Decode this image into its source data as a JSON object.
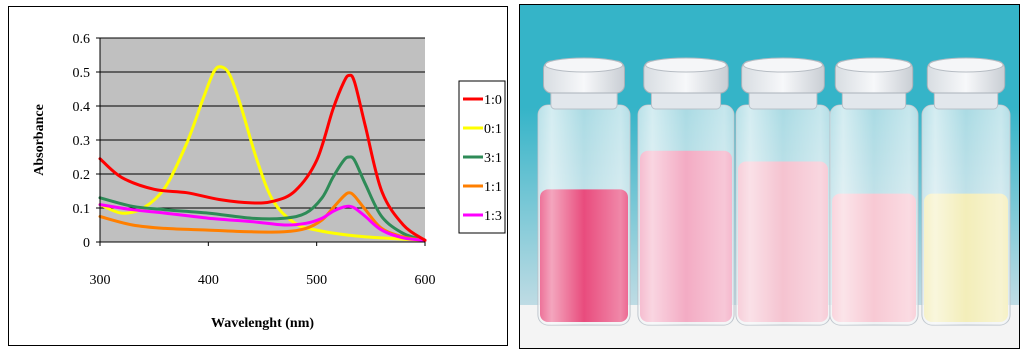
{
  "chart_data": {
    "type": "line",
    "xlabel": "Wavelenght (nm)",
    "ylabel": "Absorbance",
    "xlim": [
      300,
      600
    ],
    "ylim": [
      0,
      0.6
    ],
    "x_ticks": [
      300,
      400,
      500,
      600
    ],
    "y_ticks": [
      0,
      0.1,
      0.2,
      0.3,
      0.4,
      0.5,
      0.6
    ],
    "y_tick_labels": [
      "0",
      "0.1",
      "0.2",
      "0.3",
      "0.4",
      "0.5",
      "0.6"
    ],
    "grid": "horizontal",
    "plot_background": "#c0c0c0",
    "legend_position": "right",
    "series": [
      {
        "name": "1:0",
        "color": "#ff0000",
        "x": [
          300,
          320,
          350,
          380,
          410,
          440,
          460,
          480,
          500,
          515,
          525,
          530,
          535,
          545,
          560,
          580,
          600
        ],
        "y": [
          0.245,
          0.19,
          0.155,
          0.145,
          0.125,
          0.115,
          0.12,
          0.15,
          0.24,
          0.39,
          0.47,
          0.49,
          0.47,
          0.34,
          0.15,
          0.05,
          0.005
        ]
      },
      {
        "name": "0:1",
        "color": "#ffff00",
        "x": [
          300,
          320,
          340,
          360,
          380,
          395,
          405,
          412,
          420,
          430,
          445,
          460,
          480,
          500,
          530,
          560,
          600
        ],
        "y": [
          0.11,
          0.085,
          0.1,
          0.16,
          0.29,
          0.42,
          0.5,
          0.515,
          0.49,
          0.4,
          0.24,
          0.12,
          0.055,
          0.035,
          0.02,
          0.012,
          0.005
        ]
      },
      {
        "name": "3:1",
        "color": "#2e8b57",
        "x": [
          300,
          330,
          360,
          400,
          440,
          470,
          490,
          505,
          515,
          525,
          530,
          535,
          545,
          560,
          580,
          600
        ],
        "y": [
          0.13,
          0.105,
          0.095,
          0.085,
          0.07,
          0.07,
          0.085,
          0.13,
          0.19,
          0.24,
          0.25,
          0.24,
          0.17,
          0.075,
          0.025,
          0.005
        ]
      },
      {
        "name": "1:1",
        "color": "#ff7f00",
        "x": [
          300,
          330,
          360,
          400,
          440,
          470,
          490,
          505,
          515,
          525,
          530,
          535,
          545,
          560,
          580,
          600
        ],
        "y": [
          0.075,
          0.05,
          0.04,
          0.035,
          0.03,
          0.03,
          0.04,
          0.065,
          0.1,
          0.135,
          0.145,
          0.135,
          0.095,
          0.04,
          0.015,
          0.005
        ]
      },
      {
        "name": "1:3",
        "color": "#ff00ff",
        "x": [
          300,
          330,
          360,
          400,
          440,
          470,
          490,
          505,
          515,
          525,
          530,
          535,
          545,
          560,
          580,
          600
        ],
        "y": [
          0.11,
          0.095,
          0.085,
          0.07,
          0.06,
          0.05,
          0.055,
          0.07,
          0.09,
          0.103,
          0.105,
          0.1,
          0.075,
          0.035,
          0.012,
          0.005
        ]
      }
    ]
  },
  "photo": {
    "background_top": "#35b4c8",
    "background_bottom": "#dde4ea",
    "table_color": "#f4f4f4",
    "vials": [
      {
        "liquid_color": "#e6386f",
        "fill_level": 0.62
      },
      {
        "liquid_color": "#f2a2bd",
        "fill_level": 0.8
      },
      {
        "liquid_color": "#f4bccb",
        "fill_level": 0.75
      },
      {
        "liquid_color": "#f7c3cf",
        "fill_level": 0.6
      },
      {
        "liquid_color": "#f2ecb2",
        "fill_level": 0.6
      }
    ]
  }
}
